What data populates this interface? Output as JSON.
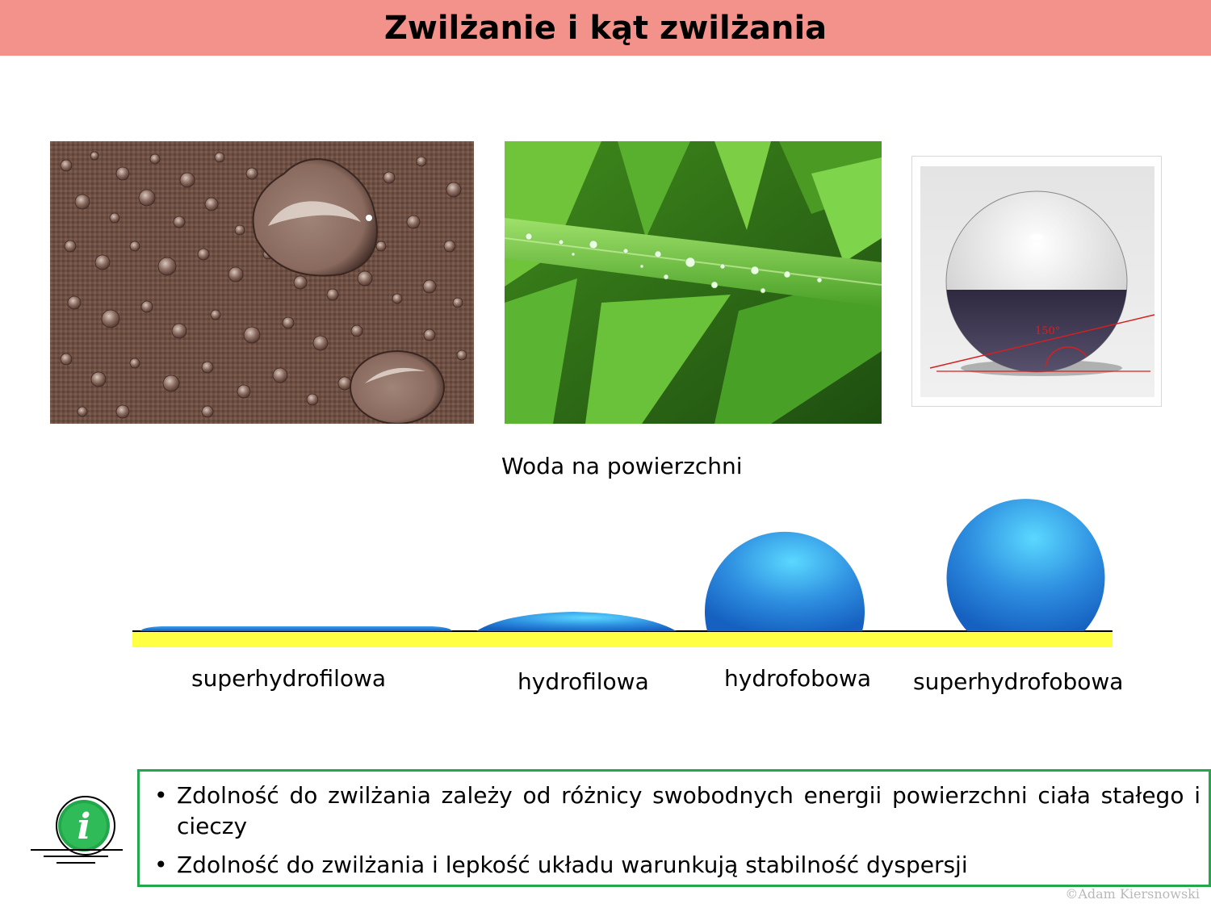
{
  "header": {
    "title": "Zwilżanie i kąt zwilżania",
    "background_color": "#f2928a"
  },
  "photos": {
    "fabric": {
      "icon": "water-drops-on-fabric-photo"
    },
    "grass": {
      "icon": "dew-on-grass-photo"
    },
    "droplet": {
      "icon": "contact-angle-droplet-photo",
      "angle_label": "150°"
    }
  },
  "caption": "Woda na powierzchni",
  "wetting_types": [
    {
      "label": "superhydrofilowa"
    },
    {
      "label": "hydrofilowa"
    },
    {
      "label": "hydrofobowa"
    },
    {
      "label": "superhydrofobowa"
    }
  ],
  "colors": {
    "surface": "#ffff44",
    "drop_light": "#5ad8ff",
    "drop_dark": "#1560c0",
    "info_border": "#22a84a",
    "info_icon": "#22a84a"
  },
  "info": {
    "icon": "info-icon",
    "bullets": [
      "Zdolność do zwilżania zależy od różnicy swobodnych energii powierzchni ciała stałego i cieczy",
      "Zdolność do zwilżania i lepkość układu warunkują stabilność dyspersji"
    ]
  },
  "copyright": "©Adam Kiersnowski"
}
